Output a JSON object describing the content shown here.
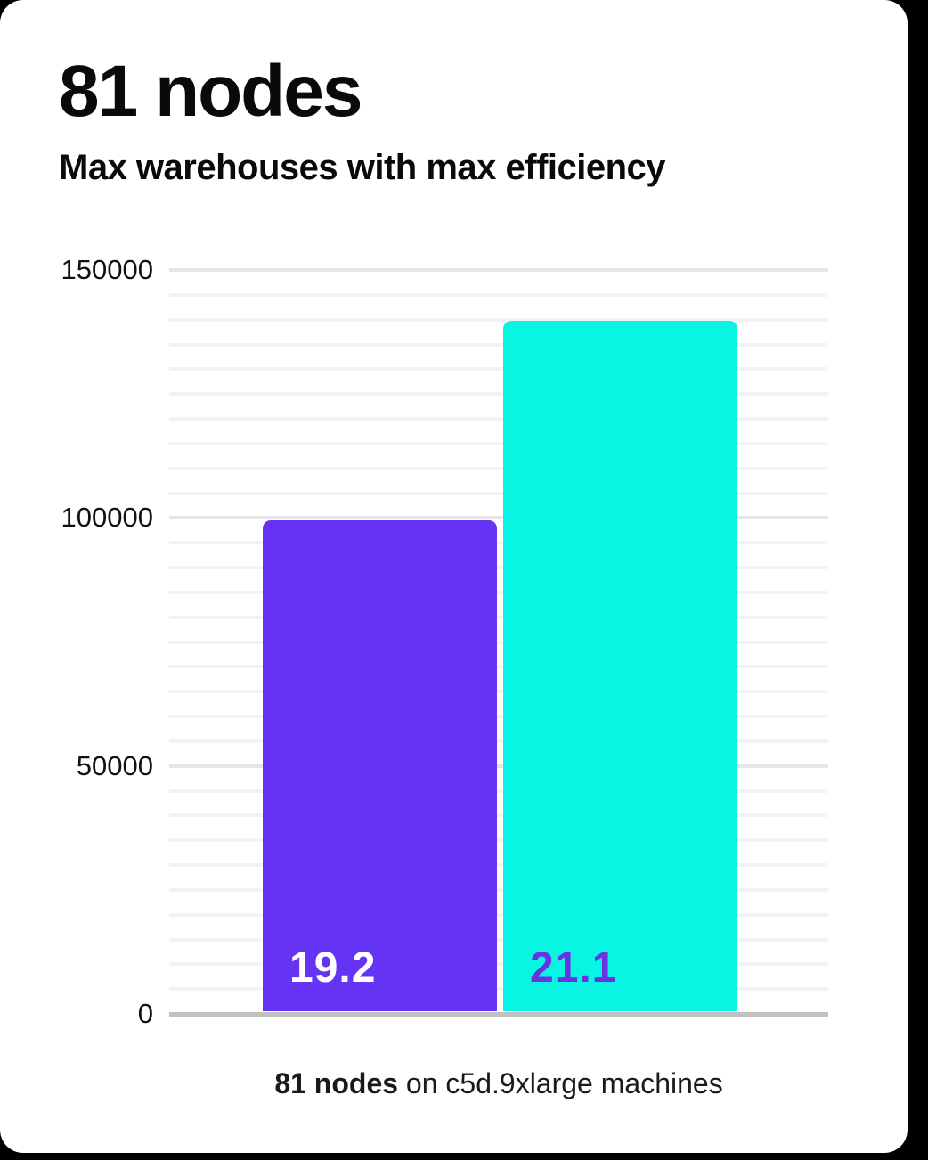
{
  "header": {
    "title": "81 nodes",
    "subtitle": "Max warehouses with max efficiency"
  },
  "caption": {
    "bold": "81 nodes",
    "rest": " on c5d.9xlarge machines"
  },
  "chart_data": {
    "type": "bar",
    "title": "81 nodes",
    "subtitle": "Max warehouses with max efficiency",
    "xlabel": "",
    "ylabel": "",
    "categories": [
      "19.2",
      "21.1"
    ],
    "values": [
      99500,
      139800
    ],
    "bar_labels": [
      "19.2",
      "21.1"
    ],
    "bar_colors": [
      "#6433f3",
      "#08f5e3"
    ],
    "bar_label_colors": [
      "#ffffff",
      "#6b32e2"
    ],
    "ylim": [
      0,
      150000
    ],
    "yticks": [
      0,
      50000,
      100000,
      150000
    ],
    "ytick_labels": [
      "0",
      "50000",
      "100000",
      "150000"
    ],
    "minor_gridline_step": 5000,
    "major_gridline_step": 50000,
    "grid": "horizontal",
    "legend": "none",
    "annotation": "81 nodes on c5d.9xlarge machines"
  },
  "colors": {
    "page_background": "#000000",
    "card_background": "#ffffff",
    "text": "#0a0a0a",
    "minor_gridline": "#f3f3f3",
    "major_gridline": "#e6e6e6",
    "axis_line": "#c1c1c1",
    "bar_primary": "#6433f3",
    "bar_secondary": "#08f5e3"
  }
}
